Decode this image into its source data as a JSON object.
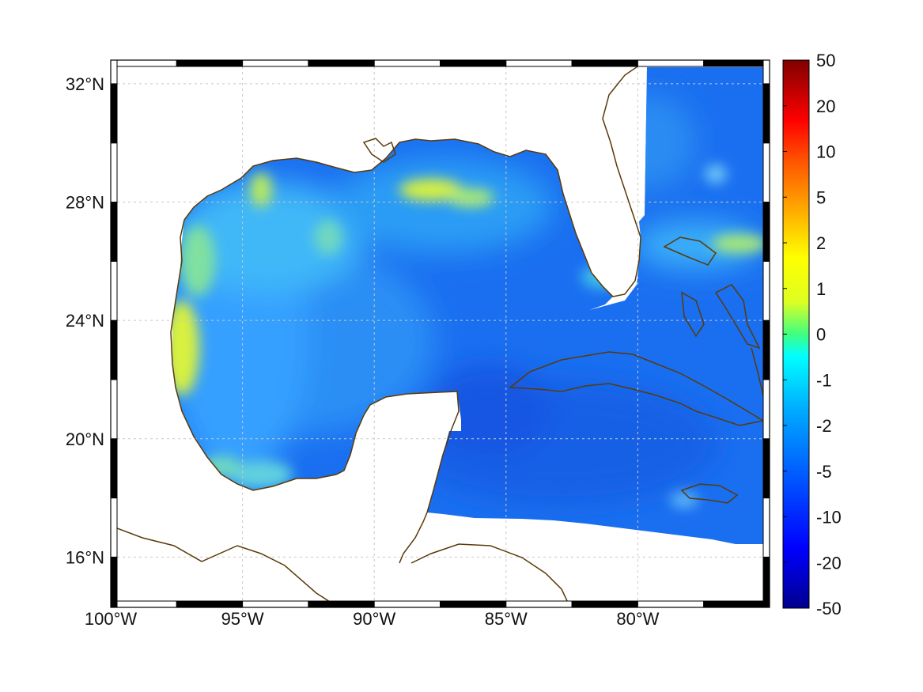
{
  "map": {
    "lon_range": [
      -100,
      -75
    ],
    "lat_range": [
      14.3,
      32.8
    ],
    "lon_ticks": [
      {
        "value": -100,
        "label": "100°W"
      },
      {
        "value": -95,
        "label": "95°W"
      },
      {
        "value": -90,
        "label": "90°W"
      },
      {
        "value": -85,
        "label": "85°W"
      },
      {
        "value": -80,
        "label": "80°W"
      }
    ],
    "lat_ticks": [
      {
        "value": 32,
        "label": "32°N"
      },
      {
        "value": 28,
        "label": "28°N"
      },
      {
        "value": 24,
        "label": "24°N"
      },
      {
        "value": 20,
        "label": "20°N"
      },
      {
        "value": 16,
        "label": "16°N"
      }
    ],
    "grid": true,
    "frame_style": "alternating black-white border",
    "colors": {
      "coastline": "#5a3a0a",
      "land": "#ffffff",
      "ocean_dominant": "#1a6ff0",
      "grid": "#c8c8c8"
    }
  },
  "colorbar": {
    "orientation": "vertical",
    "placement": "right",
    "colormap": "jet",
    "tick_labels": [
      "50",
      "20",
      "10",
      "5",
      "2",
      "1",
      "0",
      "-1",
      "-2",
      "-5",
      "-10",
      "-20",
      "-50"
    ]
  }
}
